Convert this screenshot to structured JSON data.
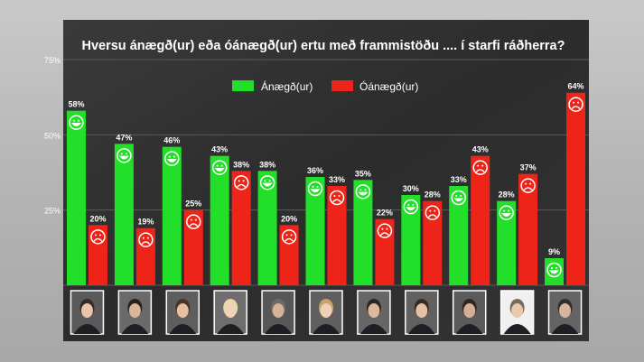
{
  "chart_data": {
    "type": "bar",
    "title": "Hversu ánægð(ur) eða óánægð(ur) ertu með frammistöðu .... í starfi ráðherra?",
    "ylim": [
      0,
      75
    ],
    "y_ticks": [
      "25%",
      "50%",
      "75%"
    ],
    "y_tick_values": [
      25,
      50,
      75
    ],
    "grid": true,
    "legend_position": "top-center",
    "categories": [
      "",
      "",
      "",
      "",
      "",
      "",
      "",
      "",
      "",
      "",
      ""
    ],
    "series": [
      {
        "name": "Ánægð(ur)",
        "color": "#22e029",
        "face": "happy",
        "values": [
          58,
          47,
          46,
          43,
          38,
          36,
          35,
          30,
          33,
          28,
          9
        ],
        "labels": [
          "58%",
          "47%",
          "46%",
          "43%",
          "38%",
          "36%",
          "35%",
          "30%",
          "33%",
          "28%",
          "9%"
        ]
      },
      {
        "name": "Óánægð(ur)",
        "color": "#ee2418",
        "face": "sad",
        "values": [
          20,
          19,
          25,
          38,
          20,
          33,
          22,
          28,
          43,
          37,
          64
        ],
        "labels": [
          "20%",
          "19%",
          "25%",
          "38%",
          "20%",
          "33%",
          "22%",
          "28%",
          "43%",
          "37%",
          "64%"
        ]
      }
    ],
    "photo_icons": [
      "person-photo-icon"
    ]
  },
  "colors": {
    "panel": "#303030",
    "grid": "#5a5a5a",
    "text": "#ffffff"
  }
}
